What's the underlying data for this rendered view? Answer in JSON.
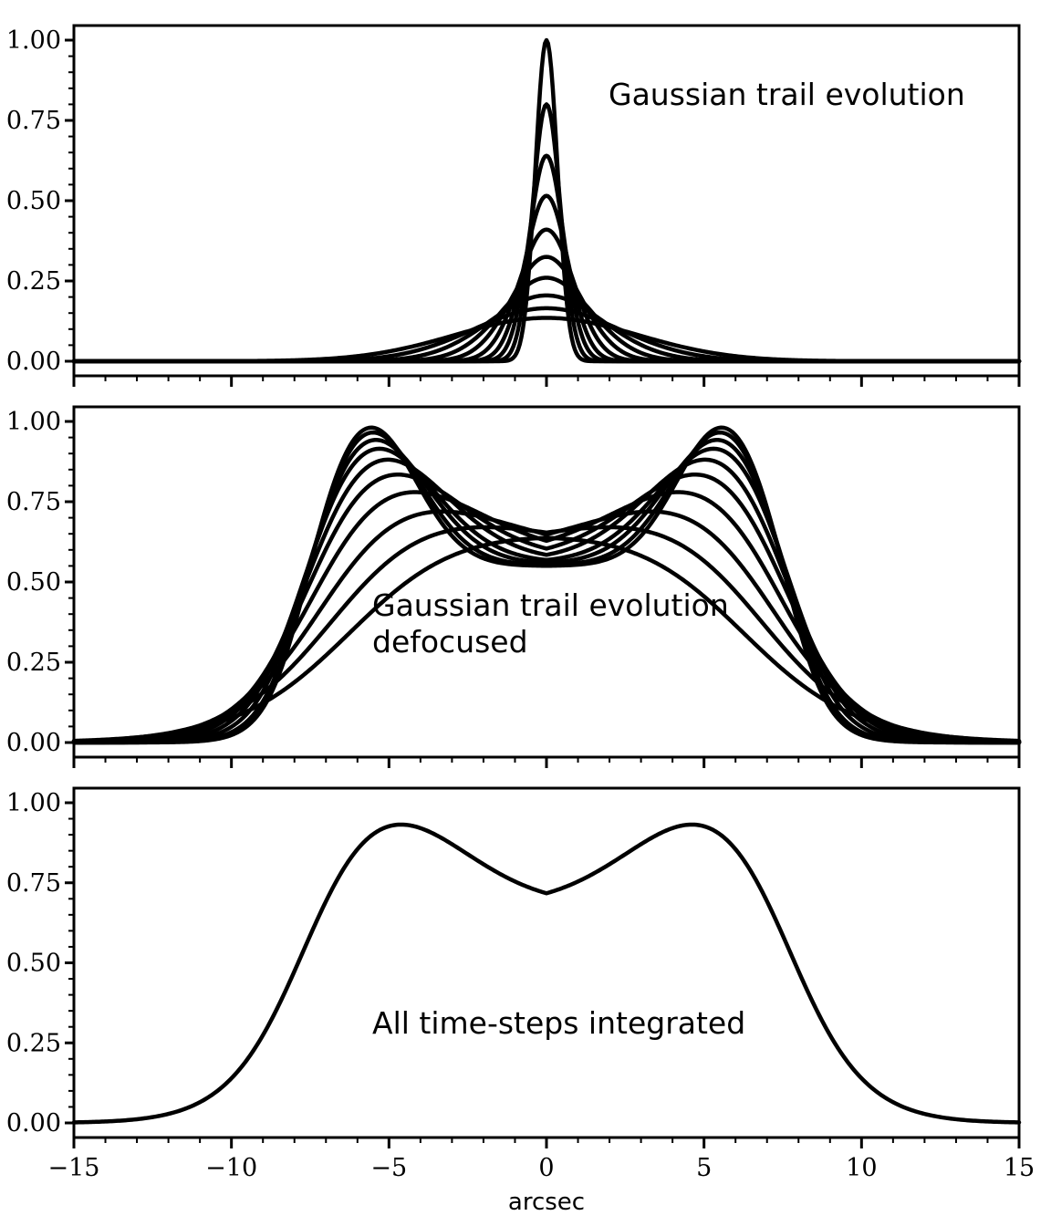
{
  "chart_data": [
    {
      "type": "line",
      "id": "top",
      "annotation_lines": [
        "Gaussian trail evolution"
      ],
      "xlim": [
        -15,
        15
      ],
      "ylim": [
        0,
        1
      ],
      "yticks": [
        "0.00",
        "0.25",
        "0.50",
        "0.75",
        "1.00"
      ],
      "grid": false,
      "series": [
        {
          "sigma": 0.35,
          "peak": 1.0
        },
        {
          "sigma": 0.44,
          "peak": 0.8
        },
        {
          "sigma": 0.55,
          "peak": 0.64
        },
        {
          "sigma": 0.68,
          "peak": 0.515
        },
        {
          "sigma": 0.86,
          "peak": 0.41
        },
        {
          "sigma": 1.1,
          "peak": 0.325
        },
        {
          "sigma": 1.4,
          "peak": 0.26
        },
        {
          "sigma": 1.8,
          "peak": 0.205
        },
        {
          "sigma": 2.3,
          "peak": 0.165
        },
        {
          "sigma": 2.9,
          "peak": 0.135
        }
      ]
    },
    {
      "type": "line",
      "id": "middle",
      "annotation_lines": [
        "Gaussian trail evolution",
        "defocused"
      ],
      "xlim": [
        -15,
        15
      ],
      "ylim": [
        0,
        1
      ],
      "yticks": [
        "0.00",
        "0.25",
        "0.50",
        "0.75",
        "1.00"
      ],
      "grid": false,
      "series": [
        {
          "sigma": 0.5,
          "peak_x": 5.7,
          "peak": 1.0,
          "center": 0.55
        },
        {
          "sigma": 0.6,
          "peak_x": 5.7,
          "peak": 0.99,
          "center": 0.552
        },
        {
          "sigma": 0.75,
          "peak_x": 5.7,
          "peak": 0.975,
          "center": 0.556
        },
        {
          "sigma": 0.9,
          "peak_x": 5.7,
          "peak": 0.955,
          "center": 0.561
        },
        {
          "sigma": 1.1,
          "peak_x": 5.6,
          "peak": 0.93,
          "center": 0.567
        },
        {
          "sigma": 1.3,
          "peak_x": 5.5,
          "peak": 0.89,
          "center": 0.575
        },
        {
          "sigma": 1.55,
          "peak_x": 5.3,
          "peak": 0.84,
          "center": 0.585
        },
        {
          "sigma": 1.85,
          "peak_x": 5.0,
          "peak": 0.78,
          "center": 0.597
        },
        {
          "sigma": 2.2,
          "peak_x": 4.6,
          "peak": 0.725,
          "center": 0.61
        },
        {
          "sigma": 2.6,
          "peak_x": 4.0,
          "peak": 0.675,
          "center": 0.625
        }
      ]
    },
    {
      "type": "line",
      "id": "bottom",
      "annotation_lines": [
        "All time-steps integrated"
      ],
      "xlim": [
        -15,
        15
      ],
      "ylim": [
        0,
        1
      ],
      "yticks": [
        "0.00",
        "0.25",
        "0.50",
        "0.75",
        "1.00"
      ],
      "xticks": [
        "−15",
        "−10",
        "−5",
        "0",
        "5",
        "10",
        "15"
      ],
      "xlabel": "arcsec",
      "grid": false,
      "series": [
        {
          "sigma": 1.45,
          "peak_x": 5.6,
          "peak": 1.0,
          "center": 0.68
        }
      ]
    }
  ]
}
